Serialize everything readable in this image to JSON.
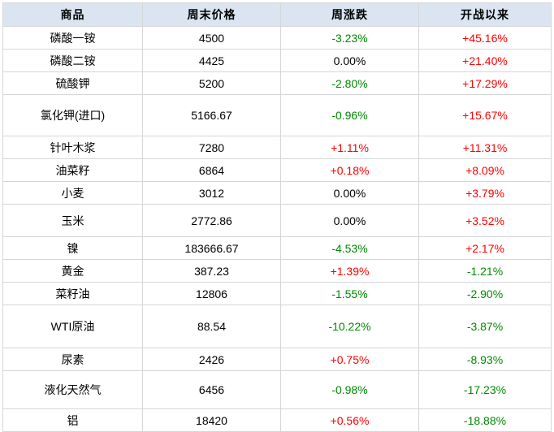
{
  "chart_data": {
    "type": "table",
    "title": "",
    "columns": [
      "商品",
      "周末价格",
      "周涨跌",
      "开战以来"
    ],
    "rows": [
      {
        "commodity": "磷酸一铵",
        "price": "4500",
        "weekly": "-3.23%",
        "weekly_trend": "down",
        "since": "+45.16%",
        "since_trend": "up"
      },
      {
        "commodity": "磷酸二铵",
        "price": "4425",
        "weekly": "0.00%",
        "weekly_trend": "flat",
        "since": "+21.40%",
        "since_trend": "up"
      },
      {
        "commodity": "硫酸钾",
        "price": "5200",
        "weekly": "-2.80%",
        "weekly_trend": "down",
        "since": "+17.29%",
        "since_trend": "up"
      },
      {
        "commodity": "氯化钾(进口)",
        "price": "5166.67",
        "weekly": "-0.96%",
        "weekly_trend": "down",
        "since": "+15.67%",
        "since_trend": "up"
      },
      {
        "commodity": "针叶木浆",
        "price": "7280",
        "weekly": "+1.11%",
        "weekly_trend": "up",
        "since": "+11.31%",
        "since_trend": "up"
      },
      {
        "commodity": "油菜籽",
        "price": "6864",
        "weekly": "+0.18%",
        "weekly_trend": "up",
        "since": "+8.09%",
        "since_trend": "up"
      },
      {
        "commodity": "小麦",
        "price": "3012",
        "weekly": "0.00%",
        "weekly_trend": "flat",
        "since": "+3.79%",
        "since_trend": "up"
      },
      {
        "commodity": "玉米",
        "price": "2772.86",
        "weekly": "0.00%",
        "weekly_trend": "flat",
        "since": "+3.52%",
        "since_trend": "up"
      },
      {
        "commodity": "镍",
        "price": "183666.67",
        "weekly": "-4.53%",
        "weekly_trend": "down",
        "since": "+2.17%",
        "since_trend": "up"
      },
      {
        "commodity": "黄金",
        "price": "387.23",
        "weekly": "+1.39%",
        "weekly_trend": "up",
        "since": "-1.21%",
        "since_trend": "down"
      },
      {
        "commodity": "菜籽油",
        "price": "12806",
        "weekly": "-1.55%",
        "weekly_trend": "down",
        "since": "-2.90%",
        "since_trend": "down"
      },
      {
        "commodity": "WTI原油",
        "price": "88.54",
        "weekly": "-10.22%",
        "weekly_trend": "down",
        "since": "-3.87%",
        "since_trend": "down"
      },
      {
        "commodity": "尿素",
        "price": "2426",
        "weekly": "+0.75%",
        "weekly_trend": "up",
        "since": "-8.93%",
        "since_trend": "down"
      },
      {
        "commodity": "液化天然气",
        "price": "6456",
        "weekly": "-0.98%",
        "weekly_trend": "down",
        "since": "-17.23%",
        "since_trend": "down"
      },
      {
        "commodity": "铝",
        "price": "18420",
        "weekly": "+0.56%",
        "weekly_trend": "up",
        "since": "-18.88%",
        "since_trend": "down"
      }
    ],
    "layout": {
      "grid": true,
      "header_row": true
    }
  },
  "colors": {
    "rise_red": "#fe0000",
    "fall_green": "#008800",
    "neutral_black": "#000000",
    "header_background": "#dbe5f1",
    "grid_line": "#d5d6d8"
  }
}
